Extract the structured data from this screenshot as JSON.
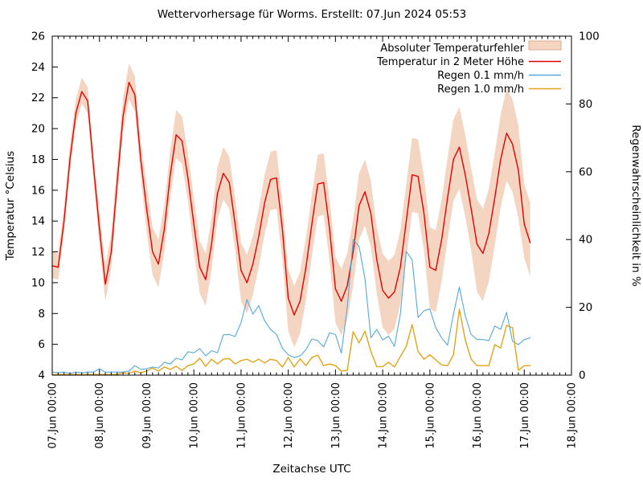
{
  "chart_data": {
    "type": "line",
    "title": "Wettervorhersage für Worms. Erstellt: 07.Jun 2024 05:53",
    "xlabel": "Zeitachse UTC",
    "ylabel_left": "Temperatur °Celsius",
    "ylabel_right": "Regenwahrscheinlichkeit in %",
    "grid": false,
    "legend_position": "top-right-inside",
    "x_axis": {
      "tick_labels": [
        "07.Jun 00:00",
        "08.Jun 00:00",
        "09.Jun 00:00",
        "10.Jun 00:00",
        "11.Jun 00:00",
        "12.Jun 00:00",
        "13.Jun 00:00",
        "14.Jun 00:00",
        "15.Jun 00:00",
        "16.Jun 00:00",
        "17.Jun 00:00",
        "18.Jun 00:00"
      ],
      "total_hours": 264,
      "major_tick_hours": 24,
      "minor_tick_hours": 3
    },
    "y_axis_left": {
      "range": [
        4,
        26
      ],
      "ticks": [
        4,
        6,
        8,
        10,
        12,
        14,
        16,
        18,
        20,
        22,
        24,
        26
      ]
    },
    "y_axis_right": {
      "range": [
        0,
        100
      ],
      "ticks": [
        0,
        20,
        40,
        60,
        80,
        100
      ]
    },
    "sample_step_hours": 3,
    "series": [
      {
        "key": "error-band",
        "name": "Absoluter Temperaturfehler",
        "type": "band",
        "axis": "left",
        "color": "#f4d5c2",
        "edge_color": "#dcab8e",
        "upper": [
          12.0,
          11.9,
          14.9,
          18.9,
          21.9,
          23.3,
          22.7,
          18.4,
          14.7,
          11.1,
          13.2,
          17.7,
          22.0,
          24.2,
          23.4,
          19.2,
          16.4,
          13.6,
          12.8,
          15.1,
          18.6,
          21.2,
          20.8,
          18.4,
          15.5,
          12.7,
          11.9,
          14.2,
          17.5,
          18.8,
          18.2,
          15.5,
          12.6,
          11.8,
          13.0,
          14.8,
          17.0,
          18.5,
          18.6,
          15.3,
          10.9,
          9.8,
          10.7,
          12.9,
          15.7,
          18.3,
          18.4,
          15.4,
          11.7,
          10.9,
          11.9,
          14.1,
          17.1,
          18.0,
          16.6,
          13.6,
          11.9,
          11.4,
          11.8,
          13.4,
          16.4,
          19.4,
          19.3,
          16.9,
          13.6,
          13.4,
          15.4,
          18.1,
          20.6,
          21.4,
          19.6,
          17.4,
          15.4,
          14.8,
          16.1,
          18.4,
          20.9,
          22.6,
          21.9,
          20.2,
          16.4,
          15.2
        ],
        "lower": [
          10.3,
          10.2,
          13.2,
          17.2,
          20.2,
          21.6,
          21.0,
          16.7,
          12.4,
          8.8,
          10.9,
          15.4,
          19.7,
          21.9,
          21.1,
          16.9,
          13.3,
          10.5,
          9.7,
          12.0,
          15.5,
          18.1,
          17.7,
          15.3,
          12.1,
          9.3,
          8.5,
          10.8,
          14.1,
          15.4,
          14.8,
          12.1,
          8.8,
          8.0,
          9.2,
          11.0,
          13.2,
          14.7,
          14.8,
          11.5,
          6.9,
          5.8,
          6.7,
          8.9,
          11.7,
          14.3,
          14.4,
          11.4,
          7.4,
          6.6,
          7.6,
          9.8,
          12.8,
          13.7,
          12.3,
          9.3,
          7.1,
          6.6,
          7.0,
          8.6,
          11.6,
          14.6,
          14.5,
          12.1,
          8.3,
          8.1,
          10.1,
          12.8,
          15.3,
          16.1,
          14.3,
          12.1,
          9.4,
          8.8,
          10.1,
          12.4,
          14.9,
          16.6,
          15.9,
          14.2,
          11.6,
          10.4
        ]
      },
      {
        "key": "temperature",
        "name": "Temperatur in 2 Meter Höhe",
        "type": "line",
        "axis": "left",
        "color": "#e60000",
        "values": [
          11.1,
          11.0,
          14.0,
          18.0,
          21.0,
          22.4,
          21.8,
          17.5,
          13.5,
          9.9,
          12.0,
          16.5,
          20.8,
          23.0,
          22.2,
          18.0,
          14.8,
          12.0,
          11.2,
          13.5,
          17.0,
          19.6,
          19.2,
          16.8,
          13.8,
          11.0,
          10.2,
          12.5,
          15.8,
          17.1,
          16.5,
          13.8,
          10.8,
          10.0,
          11.2,
          13.0,
          15.2,
          16.7,
          16.8,
          13.5,
          9.0,
          7.9,
          8.8,
          11.0,
          13.8,
          16.4,
          16.5,
          13.5,
          9.6,
          8.8,
          9.8,
          12.0,
          15.0,
          15.9,
          14.5,
          11.5,
          9.5,
          9.0,
          9.4,
          11.0,
          14.0,
          17.0,
          16.9,
          14.5,
          11.0,
          10.8,
          12.8,
          15.5,
          18.0,
          18.8,
          17.0,
          14.8,
          12.5,
          11.9,
          13.2,
          15.5,
          18.0,
          19.7,
          19.0,
          17.3,
          13.8,
          12.6
        ]
      },
      {
        "key": "rain-01",
        "name": "Regen 0.1 mm/h",
        "type": "line",
        "axis": "right",
        "color": "#55a9da",
        "values": [
          0.9,
          0.7,
          0.9,
          0.5,
          0.9,
          0.7,
          0.9,
          0.9,
          1.9,
          0.9,
          0.9,
          0.9,
          0.9,
          1.2,
          2.8,
          1.7,
          1.9,
          2.4,
          2.1,
          3.8,
          3.3,
          5.0,
          4.5,
          6.9,
          6.6,
          7.8,
          5.7,
          7.2,
          6.6,
          11.9,
          12.0,
          11.4,
          15.5,
          22.3,
          18.0,
          20.5,
          16.0,
          13.5,
          12.0,
          8.0,
          6.0,
          5.2,
          5.7,
          7.5,
          10.7,
          10.2,
          8.3,
          12.5,
          12.0,
          6.5,
          20.0,
          40.0,
          38.0,
          28.5,
          11.0,
          13.5,
          10.4,
          11.5,
          8.5,
          18.0,
          36.5,
          34.0,
          17.0,
          19.0,
          19.5,
          14.0,
          11.0,
          8.8,
          18.0,
          26.0,
          17.5,
          12.0,
          10.5,
          10.5,
          10.2,
          14.5,
          13.5,
          18.5,
          10.0,
          9.0,
          10.5,
          11.0
        ]
      },
      {
        "key": "rain-10",
        "name": "Regen 1.0 mm/h",
        "type": "line",
        "axis": "right",
        "color": "#e0a418",
        "values": [
          0.2,
          0.2,
          0.2,
          0.2,
          0.2,
          0.2,
          0.2,
          0.2,
          0.2,
          0.2,
          0.2,
          0.2,
          0.7,
          0.5,
          1.2,
          0.7,
          1.2,
          2.1,
          1.2,
          2.4,
          1.7,
          2.6,
          1.4,
          2.8,
          3.3,
          5.0,
          2.6,
          4.7,
          3.3,
          4.7,
          4.9,
          3.3,
          4.3,
          4.7,
          3.8,
          4.7,
          3.6,
          4.7,
          4.3,
          2.4,
          5.2,
          2.4,
          4.8,
          2.8,
          5.2,
          5.9,
          2.8,
          3.3,
          2.8,
          1.2,
          1.4,
          12.8,
          9.5,
          13.0,
          7.0,
          2.5,
          2.5,
          3.8,
          2.4,
          5.5,
          8.5,
          14.9,
          7.0,
          4.7,
          6.0,
          4.5,
          3.0,
          2.8,
          6.0,
          19.4,
          10.4,
          4.7,
          2.8,
          2.8,
          2.8,
          9.0,
          8.0,
          14.7,
          14.0,
          1.4,
          2.8,
          2.8
        ]
      }
    ]
  }
}
